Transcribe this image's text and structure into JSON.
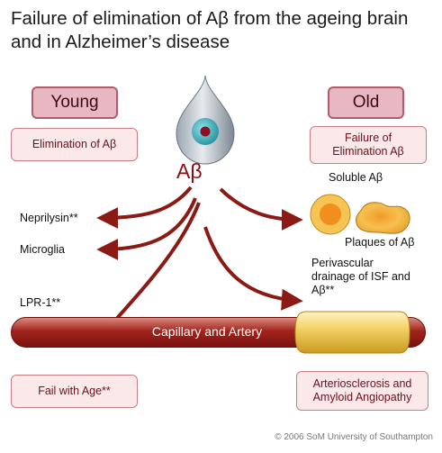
{
  "title": "Failure of elimination of Aβ from the ageing brain and in Alzheimer’s disease",
  "young": {
    "header": "Young",
    "subtitle": "Elimination of Aβ",
    "footer": "Fail with Age**"
  },
  "old": {
    "header": "Old",
    "subtitle": "Failure of Elimination Aβ",
    "footer": "Arteriosclerosis and Amyloid Angiopathy"
  },
  "center_label": "Aβ",
  "pathways_left": [
    "Neprilysin**",
    "Microglia",
    "LPR-1**"
  ],
  "labels_right": {
    "soluble": "Soluble Aβ",
    "plaques": "Plaques of Aβ",
    "perivascular": "Perivascular drainage of ISF and Aβ**"
  },
  "capillary": "Capillary and Artery",
  "copyright": "© 2006 SoM University of Southampton",
  "colors": {
    "arrow": "#8b1a14",
    "accent": "#8b0c14",
    "pane_bg": "#fbe9ea",
    "header_bg": "#e7b8c1",
    "plaque": "#f1b43c"
  }
}
